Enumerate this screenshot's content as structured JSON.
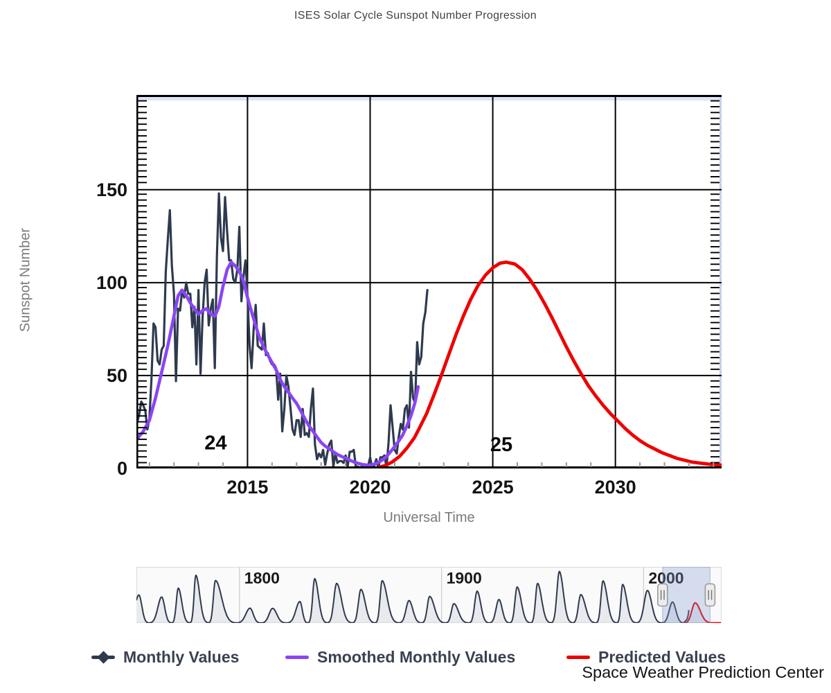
{
  "title": "ISES Solar Cycle Sunspot Number Progression",
  "credit": "Space Weather Prediction Center",
  "legend": [
    {
      "label": "Monthly Values",
      "color": "#2e3a4e",
      "marker": "line-diamond"
    },
    {
      "label": "Smoothed Monthly Values",
      "color": "#8a45f5",
      "marker": "line"
    },
    {
      "label": "Predicted Values",
      "color": "#ee0000",
      "marker": "line"
    }
  ],
  "chart_data": [
    {
      "type": "line",
      "title": "ISES Solar Cycle Sunspot Number Progression",
      "xlabel": "Universal Time",
      "ylabel": "Sunspot Number",
      "xlim": [
        2010.47,
        2034.33
      ],
      "ylim": [
        0,
        201
      ],
      "x_ticks": [
        2015,
        2020,
        2025,
        2030
      ],
      "y_ticks": [
        0,
        50,
        100,
        150
      ],
      "grid": true,
      "legend_position": "bottom",
      "annotations": [
        {
          "text": "24",
          "x": 2013.7,
          "y": 14
        },
        {
          "text": "25",
          "x": 2025.35,
          "y": 13
        }
      ],
      "series": [
        {
          "name": "Monthly Values",
          "color": "#2e3a4e",
          "x_start": 2010.5,
          "x_step": 0.0833333,
          "values": [
            25,
            29,
            36,
            34,
            31,
            21,
            27,
            48,
            78,
            76,
            58,
            56,
            64,
            66,
            106,
            123,
            139,
            109,
            94,
            47,
            86,
            85,
            96,
            92,
            100,
            94,
            94,
            76,
            87,
            56,
            96,
            51,
            81,
            100,
            107,
            77,
            86,
            91,
            54,
            114,
            148,
            124,
            117,
            146,
            128,
            112,
            112,
            102,
            100,
            107,
            130,
            90,
            103,
            112,
            93,
            66,
            54,
            75,
            88,
            66,
            65,
            64,
            78,
            61,
            62,
            58,
            56,
            56,
            54,
            37,
            51,
            20,
            32,
            50,
            44,
            33,
            21,
            18,
            26,
            26,
            17,
            32,
            18,
            19,
            17,
            32,
            43,
            13,
            5,
            8,
            6,
            10,
            2,
            8,
            13,
            15,
            1,
            8,
            3,
            4,
            4,
            3,
            7,
            1,
            9,
            9,
            10,
            1,
            1,
            0.5,
            1,
            0.4,
            0.5,
            1.5,
            6,
            0.2,
            1.5,
            5,
            0.2,
            6,
            6,
            7,
            0.6,
            14,
            34,
            22,
            10,
            8,
            17,
            24,
            21,
            32,
            34,
            22,
            52,
            38,
            35,
            68,
            56,
            60,
            78,
            84,
            96
          ]
        },
        {
          "name": "Smoothed Monthly Values",
          "color": "#8a45f5",
          "points": [
            [
              2010.5,
              16
            ],
            [
              2010.75,
              20
            ],
            [
              2011,
              26
            ],
            [
              2011.25,
              38
            ],
            [
              2011.5,
              52
            ],
            [
              2011.75,
              66
            ],
            [
              2012,
              82
            ],
            [
              2012.17,
              93
            ],
            [
              2012.33,
              96
            ],
            [
              2012.5,
              93
            ],
            [
              2012.67,
              89
            ],
            [
              2012.83,
              86
            ],
            [
              2013,
              83
            ],
            [
              2013.17,
              85
            ],
            [
              2013.33,
              86
            ],
            [
              2013.5,
              83
            ],
            [
              2013.67,
              82
            ],
            [
              2013.83,
              87
            ],
            [
              2014,
              98
            ],
            [
              2014.17,
              107
            ],
            [
              2014.33,
              111
            ],
            [
              2014.5,
              109
            ],
            [
              2014.67,
              106
            ],
            [
              2014.83,
              101
            ],
            [
              2015,
              92
            ],
            [
              2015.17,
              84
            ],
            [
              2015.33,
              77
            ],
            [
              2015.5,
              70
            ],
            [
              2015.67,
              65
            ],
            [
              2015.83,
              61
            ],
            [
              2016,
              57
            ],
            [
              2016.17,
              53
            ],
            [
              2016.33,
              48
            ],
            [
              2016.5,
              44
            ],
            [
              2016.67,
              41
            ],
            [
              2016.83,
              38
            ],
            [
              2017,
              35
            ],
            [
              2017.17,
              31
            ],
            [
              2017.33,
              27
            ],
            [
              2017.5,
              23
            ],
            [
              2017.67,
              20
            ],
            [
              2017.83,
              17
            ],
            [
              2018,
              14
            ],
            [
              2018.17,
              12
            ],
            [
              2018.33,
              10.5
            ],
            [
              2018.5,
              9
            ],
            [
              2018.67,
              7.5
            ],
            [
              2018.83,
              6.5
            ],
            [
              2019,
              5.5
            ],
            [
              2019.17,
              4.5
            ],
            [
              2019.33,
              3.5
            ],
            [
              2019.5,
              2.8
            ],
            [
              2019.67,
              2.2
            ],
            [
              2019.83,
              1.9
            ],
            [
              2019.96,
              1.8
            ],
            [
              2020.17,
              2.3
            ],
            [
              2020.33,
              3.2
            ],
            [
              2020.5,
              4.5
            ],
            [
              2020.67,
              6.5
            ],
            [
              2020.83,
              9
            ],
            [
              2021,
              11.8
            ],
            [
              2021.17,
              14.8
            ],
            [
              2021.33,
              18
            ],
            [
              2021.5,
              23
            ],
            [
              2021.67,
              28.5
            ],
            [
              2021.83,
              35.5
            ],
            [
              2021.96,
              44
            ]
          ]
        },
        {
          "name": "Predicted Values",
          "color": "#ee0000",
          "points": [
            [
              2020.3,
              0.5
            ],
            [
              2020.6,
              1.5
            ],
            [
              2020.9,
              3.5
            ],
            [
              2021.2,
              6.5
            ],
            [
              2021.5,
              11
            ],
            [
              2021.8,
              16.5
            ],
            [
              2022,
              21.5
            ],
            [
              2022.3,
              29.5
            ],
            [
              2022.6,
              39.5
            ],
            [
              2022.9,
              50
            ],
            [
              2023.2,
              61
            ],
            [
              2023.5,
              72
            ],
            [
              2023.8,
              82
            ],
            [
              2024.1,
              91
            ],
            [
              2024.4,
              98.5
            ],
            [
              2024.7,
              104
            ],
            [
              2025,
              108
            ],
            [
              2025.3,
              110.5
            ],
            [
              2025.55,
              111
            ],
            [
              2025.9,
              110
            ],
            [
              2026.2,
              107
            ],
            [
              2026.5,
              102
            ],
            [
              2026.8,
              96
            ],
            [
              2027.1,
              89
            ],
            [
              2027.4,
              81.5
            ],
            [
              2027.7,
              73.5
            ],
            [
              2028,
              65.5
            ],
            [
              2028.3,
              58
            ],
            [
              2028.6,
              51
            ],
            [
              2028.9,
              44.5
            ],
            [
              2029.2,
              39
            ],
            [
              2029.5,
              34
            ],
            [
              2029.8,
              29.5
            ],
            [
              2030.1,
              25.5
            ],
            [
              2030.4,
              21.5
            ],
            [
              2030.7,
              18
            ],
            [
              2031,
              15
            ],
            [
              2031.3,
              12.5
            ],
            [
              2031.6,
              10.5
            ],
            [
              2031.9,
              8.5
            ],
            [
              2032.2,
              7
            ],
            [
              2032.5,
              5.5
            ],
            [
              2032.8,
              4.5
            ],
            [
              2033.1,
              3.5
            ],
            [
              2033.4,
              3
            ],
            [
              2033.7,
              2.5
            ],
            [
              2034,
              2
            ],
            [
              2034.33,
              1.8
            ]
          ]
        }
      ]
    },
    {
      "type": "area",
      "role": "navigator",
      "xlim": [
        1749,
        2038.6
      ],
      "ylim": [
        0,
        310
      ],
      "x_ticks": [
        1800,
        1900,
        2000
      ],
      "selection": [
        2009.4,
        2032.9
      ],
      "series_color": "#2e3a4e",
      "predicted_color": "#ee0000",
      "cycles": [
        {
          "s": 1744,
          "p": 1750.2,
          "a": 155,
          "e": 1755.2
        },
        {
          "s": 1755.2,
          "p": 1761.5,
          "a": 144,
          "e": 1766.5
        },
        {
          "s": 1766.5,
          "p": 1769.7,
          "a": 193,
          "e": 1775.5
        },
        {
          "s": 1775.5,
          "p": 1778.4,
          "a": 264,
          "e": 1784.7
        },
        {
          "s": 1784.7,
          "p": 1788.1,
          "a": 235,
          "e": 1798.3
        },
        {
          "s": 1798.3,
          "p": 1805.2,
          "a": 82,
          "e": 1810.6
        },
        {
          "s": 1810.6,
          "p": 1816.4,
          "a": 81,
          "e": 1823.3
        },
        {
          "s": 1823.3,
          "p": 1829.9,
          "a": 119,
          "e": 1833.9
        },
        {
          "s": 1833.9,
          "p": 1837.2,
          "a": 245,
          "e": 1843.5
        },
        {
          "s": 1843.5,
          "p": 1848.1,
          "a": 219,
          "e": 1855.9
        },
        {
          "s": 1855.9,
          "p": 1860.1,
          "a": 186,
          "e": 1867.2
        },
        {
          "s": 1867.2,
          "p": 1870.6,
          "a": 234,
          "e": 1878.9
        },
        {
          "s": 1878.9,
          "p": 1883.9,
          "a": 124,
          "e": 1890.2
        },
        {
          "s": 1890.2,
          "p": 1894.1,
          "a": 147,
          "e": 1902
        },
        {
          "s": 1902,
          "p": 1906.1,
          "a": 107,
          "e": 1913.6
        },
        {
          "s": 1913.6,
          "p": 1917.6,
          "a": 176,
          "e": 1923.6
        },
        {
          "s": 1923.6,
          "p": 1928.4,
          "a": 130,
          "e": 1933.8
        },
        {
          "s": 1933.8,
          "p": 1937.4,
          "a": 199,
          "e": 1944.2
        },
        {
          "s": 1944.2,
          "p": 1947.5,
          "a": 219,
          "e": 1954.3
        },
        {
          "s": 1954.3,
          "p": 1958.3,
          "a": 285,
          "e": 1964.9
        },
        {
          "s": 1964.9,
          "p": 1968.9,
          "a": 157,
          "e": 1976.5
        },
        {
          "s": 1976.5,
          "p": 1979.9,
          "a": 233,
          "e": 1986.8
        },
        {
          "s": 1986.8,
          "p": 1989.6,
          "a": 213,
          "e": 1996.4
        },
        {
          "s": 1996.4,
          "p": 2001.9,
          "a": 180,
          "e": 2008.9
        },
        {
          "s": 2008.9,
          "p": 2014.3,
          "a": 116,
          "e": 2019.96
        }
      ],
      "recent": [
        [
          2020.2,
          6
        ],
        [
          2020.7,
          11
        ],
        [
          2021.1,
          15
        ],
        [
          2021.5,
          22
        ],
        [
          2021.85,
          33
        ],
        [
          2022.15,
          50
        ],
        [
          2022.4,
          72
        ]
      ],
      "predicted_bump": {
        "s": 2019.96,
        "p": 2025.5,
        "a": 111,
        "e": 2034
      }
    }
  ]
}
